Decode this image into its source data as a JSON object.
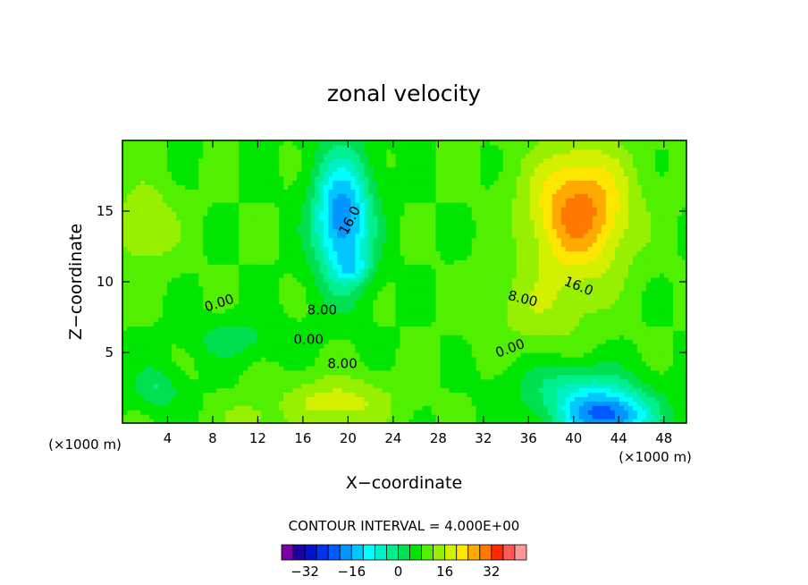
{
  "chart_data": {
    "type": "heatmap",
    "subtype": "filled-contour",
    "title": "zonal velocity",
    "xlabel": "X−coordinate",
    "ylabel": "Z−coordinate",
    "x_unit": "(×1000 m)",
    "y_unit": "(×1000 m)",
    "xlim": [
      0,
      50
    ],
    "ylim": [
      0,
      20
    ],
    "x_ticks": [
      4,
      8,
      12,
      16,
      20,
      24,
      28,
      32,
      36,
      40,
      44,
      48
    ],
    "y_ticks": [
      5,
      10,
      15
    ],
    "x_tick_labels": [
      "4",
      "8",
      "12",
      "16",
      "20",
      "24",
      "28",
      "32",
      "36",
      "40",
      "44",
      "48"
    ],
    "y_tick_labels": [
      "5",
      "10",
      "15"
    ],
    "contour_interval_text": "CONTOUR INTERVAL = 4.000E+00",
    "contour_interval": 4,
    "colorbar": {
      "levels": [
        -40,
        -36,
        -32,
        -28,
        -24,
        -20,
        -16,
        -12,
        -8,
        -4,
        0,
        4,
        8,
        12,
        16,
        20,
        24,
        28,
        32,
        36,
        40
      ],
      "tick_labels": [
        "−32",
        "−16",
        "0",
        "16",
        "32"
      ],
      "tick_values": [
        -32,
        -16,
        0,
        16,
        32
      ],
      "colors": [
        "#7a00a8",
        "#1a00a0",
        "#0014c8",
        "#0032f0",
        "#005aff",
        "#0096ff",
        "#00c8ff",
        "#00ffff",
        "#00f0c8",
        "#00f090",
        "#00e050",
        "#00e600",
        "#50f000",
        "#96f000",
        "#d2f000",
        "#ffe600",
        "#ffaa00",
        "#ff7800",
        "#ff2800",
        "#ff5a5a",
        "#ff9696"
      ]
    },
    "contour_labels": [
      {
        "text": "16.0",
        "x": 20.5,
        "y": 14.2,
        "angle": -62
      },
      {
        "text": "0.00",
        "x": 8.7,
        "y": 8.2,
        "angle": -18
      },
      {
        "text": "8.00",
        "x": 17.7,
        "y": 7.7,
        "angle": 0
      },
      {
        "text": "0.00",
        "x": 16.5,
        "y": 5.6,
        "angle": 0
      },
      {
        "text": "8.00",
        "x": 19.5,
        "y": 3.9,
        "angle": 0
      },
      {
        "text": "16.0",
        "x": 40.3,
        "y": 9.4,
        "angle": 22
      },
      {
        "text": "8.00",
        "x": 35.4,
        "y": 8.5,
        "angle": 14
      },
      {
        "text": "0.00",
        "x": 34.5,
        "y": 5.0,
        "angle": -20
      }
    ],
    "features": [
      {
        "x": 2,
        "y": 14,
        "sx": 3,
        "sz": 3,
        "amp": 8
      },
      {
        "x": 19.5,
        "y": 14.5,
        "sx": 2.5,
        "sz": 4.5,
        "amp": -28
      },
      {
        "x": 20.5,
        "y": 11,
        "sx": 1.5,
        "sz": 1,
        "amp": -8
      },
      {
        "x": 40.5,
        "y": 15,
        "sx": 4.5,
        "sz": 4.5,
        "amp": 22
      },
      {
        "x": 43,
        "y": 0.5,
        "sx": 4,
        "sz": 1.8,
        "amp": -28
      },
      {
        "x": 40,
        "y": 2.5,
        "sx": 5,
        "sz": 2,
        "amp": -10
      },
      {
        "x": 19,
        "y": 1.5,
        "sx": 5,
        "sz": 1.8,
        "amp": 10
      },
      {
        "x": 11,
        "y": 0.5,
        "sx": 2,
        "sz": 1,
        "amp": 6
      },
      {
        "x": 3,
        "y": 2.5,
        "sx": 2,
        "sz": 1.5,
        "amp": -8
      },
      {
        "x": 10,
        "y": 6,
        "sx": 4,
        "sz": 1.5,
        "amp": -6
      },
      {
        "x": 37,
        "y": 8,
        "sx": 5,
        "sz": 3,
        "amp": 6
      }
    ],
    "base_value": 4,
    "grid": false
  }
}
